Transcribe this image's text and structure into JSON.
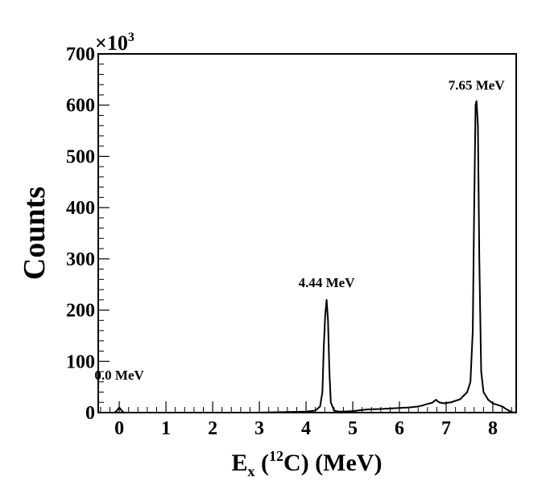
{
  "chart_data": {
    "type": "line",
    "title": "",
    "xlabel": {
      "main": "E",
      "sub": "x",
      "open": " (",
      "sup": "12",
      "rest": "C) (MeV)"
    },
    "ylabel": "Counts",
    "y_multiplier": {
      "base": "×10",
      "exp": "3"
    },
    "xlim": [
      -0.45,
      8.5
    ],
    "ylim": [
      0,
      700
    ],
    "x_ticks": [
      "0",
      "1",
      "2",
      "3",
      "4",
      "5",
      "6",
      "7",
      "8"
    ],
    "y_ticks": [
      "0",
      "100",
      "200",
      "300",
      "400",
      "500",
      "600",
      "700"
    ],
    "grid": false,
    "series": [
      {
        "x": [
          -0.45,
          -0.1,
          -0.05,
          0.0,
          0.05,
          0.1,
          0.5,
          1.0,
          2.0,
          3.0,
          3.5,
          4.0,
          4.2,
          4.3,
          4.35,
          4.38,
          4.41,
          4.44,
          4.47,
          4.5,
          4.53,
          4.6,
          4.7,
          4.8,
          5.0,
          5.3,
          5.6,
          5.8,
          6.0,
          6.2,
          6.4,
          6.5,
          6.6,
          6.7,
          6.78,
          6.85,
          6.95,
          7.1,
          7.3,
          7.45,
          7.52,
          7.57,
          7.6,
          7.63,
          7.65,
          7.68,
          7.71,
          7.75,
          7.8,
          7.9,
          8.0,
          8.2,
          8.3,
          8.4,
          8.5
        ],
        "y": [
          0,
          0,
          4,
          10,
          4,
          0,
          0,
          0,
          0,
          0,
          1,
          2,
          4,
          12,
          40,
          130,
          190,
          220,
          180,
          80,
          20,
          4,
          2,
          2,
          3,
          6,
          7,
          8,
          9,
          10,
          12,
          14,
          17,
          19,
          25,
          20,
          18,
          20,
          26,
          40,
          60,
          160,
          400,
          600,
          608,
          560,
          300,
          80,
          40,
          25,
          18,
          12,
          6,
          1,
          0
        ]
      }
    ],
    "annotations": [
      {
        "text": "0.0 MeV",
        "x": 0.0,
        "y": 64
      },
      {
        "text": "4.44 MeV",
        "x": 4.44,
        "y": 245
      },
      {
        "text": "7.65 MeV",
        "x": 7.65,
        "y": 630
      }
    ]
  }
}
